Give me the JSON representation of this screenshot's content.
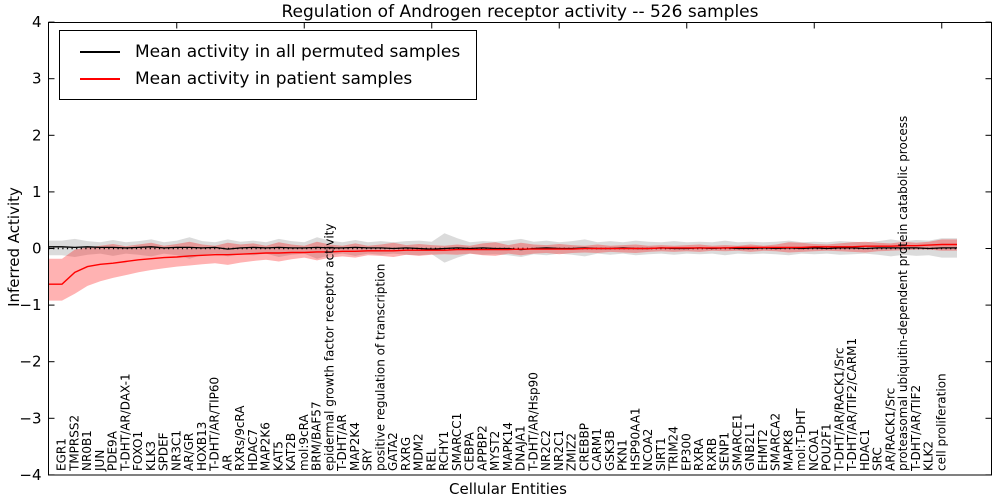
{
  "figure": {
    "title": "Regulation of Androgen receptor activity -- 526 samples",
    "xlabel": "Cellular Entities",
    "ylabel": "Inferred Activity"
  },
  "legend": {
    "entries": [
      {
        "label": "Mean activity in all permuted samples",
        "color": "#000000"
      },
      {
        "label": "Mean activity in patient samples",
        "color": "#ff0000"
      }
    ]
  },
  "chart_data": {
    "type": "line",
    "title": "Regulation of Androgen receptor activity -- 526 samples",
    "xlabel": "Cellular Entities",
    "ylabel": "Inferred Activity",
    "ylim": [
      -4,
      4
    ],
    "yticks": [
      4,
      3,
      2,
      1,
      0,
      -1,
      -2,
      -3,
      -4
    ],
    "grid": false,
    "legend_position": "upper left",
    "baseline": 0,
    "categories": [
      "EGR1",
      "TMPRSS2",
      "NR0B1",
      "JUN",
      "PDE9A",
      "T-DHT/AR/DAX-1",
      "FOXO1",
      "KLK3",
      "SPDEF",
      "NR3C1",
      "AR/GR",
      "HOXB13",
      "T-DHT/AR/TIP60",
      "AR",
      "RXRs/9cRA",
      "HDAC7",
      "MAP2K6",
      "KAT5",
      "KAT2B",
      "mol:9cRA",
      "BRM/BAF57",
      "epidermal growth factor receptor activity",
      "T-DHT/AR",
      "MAP2K4",
      "SRY",
      "positive regulation of transcription",
      "GATA2",
      "RXRG",
      "MDM2",
      "REL",
      "RCHY1",
      "SMARCC1",
      "CEBPA",
      "APPBP2",
      "MYST2",
      "MAPK14",
      "DNAJA1",
      "T-DHT/AR/Hsp90",
      "NR2C2",
      "NR2C1",
      "ZMIZ2",
      "CREBBP",
      "CARM1",
      "GSK3B",
      "PKN1",
      "HSP90AA1",
      "NCOA2",
      "SIRT1",
      "TRIM24",
      "EP300",
      "RXRA",
      "RXRB",
      "SENP1",
      "SMARCE1",
      "GNB2L1",
      "EHMT2",
      "SMARCA2",
      "MAPK8",
      "mol:T-DHT",
      "NCOA1",
      "POU2F1",
      "T-DHT/AR/RACK1/Src",
      "T-DHT/AR/TIF2/CARM1",
      "HDAC1",
      "SRC",
      "AR/RACK1/Src",
      "proteasomal ubiquitin-dependent protein catabolic process",
      "T-DHT/AR/TIF2",
      "KLK2",
      "cell proliferation"
    ],
    "series": [
      {
        "name": "Mean activity in all permuted samples",
        "color": "#000000",
        "values": [
          0.03,
          0.02,
          0.03,
          0.02,
          0.02,
          0.01,
          0.02,
          0.03,
          0.01,
          0.02,
          0.02,
          0.01,
          0.02,
          -0.01,
          0.01,
          0.02,
          0.01,
          0.02,
          0.01,
          0.01,
          0.02,
          0.01,
          0.01,
          0.02,
          0.01,
          0.01,
          0.0,
          0.01,
          0.0,
          -0.01,
          0.0,
          0.01,
          0.0,
          0.01,
          0.0,
          0.0,
          -0.02,
          0.0,
          0.01,
          0.0,
          0.0,
          0.01,
          0.0,
          0.0,
          0.01,
          0.0,
          0.0,
          0.01,
          0.0,
          0.0,
          0.01,
          0.0,
          0.01,
          0.0,
          0.0,
          0.01,
          0.0,
          0.01,
          0.0,
          0.01,
          0.0,
          0.01,
          0.01,
          0.0,
          0.01,
          0.01,
          0.01,
          0.01,
          0.0,
          0.01
        ],
        "band": {
          "color": "rgba(110,110,110,0.25)",
          "upper": [
            0.14,
            0.17,
            0.13,
            0.11,
            0.15,
            0.11,
            0.13,
            0.16,
            0.11,
            0.14,
            0.2,
            0.13,
            0.11,
            0.16,
            0.12,
            0.14,
            0.11,
            0.17,
            0.13,
            0.11,
            0.2,
            0.14,
            0.11,
            0.15,
            0.11,
            0.13,
            0.11,
            0.13,
            0.14,
            0.12,
            0.27,
            0.18,
            0.11,
            0.13,
            0.12,
            0.14,
            0.17,
            0.12,
            0.14,
            0.11,
            0.13,
            0.16,
            0.11,
            0.13,
            0.11,
            0.14,
            0.12,
            0.11,
            0.13,
            0.11,
            0.12,
            0.11,
            0.14,
            0.11,
            0.12,
            0.11,
            0.12,
            0.14,
            0.11,
            0.12,
            0.11,
            0.13,
            0.12,
            0.11,
            0.13,
            0.16,
            0.13,
            0.15,
            0.14,
            0.18
          ],
          "lower": [
            -0.12,
            -0.15,
            -0.11,
            -0.09,
            -0.13,
            -0.09,
            -0.11,
            -0.14,
            -0.09,
            -0.12,
            -0.18,
            -0.11,
            -0.09,
            -0.14,
            -0.1,
            -0.12,
            -0.09,
            -0.15,
            -0.11,
            -0.09,
            -0.18,
            -0.12,
            -0.09,
            -0.13,
            -0.09,
            -0.11,
            -0.09,
            -0.11,
            -0.12,
            -0.1,
            -0.25,
            -0.16,
            -0.09,
            -0.11,
            -0.1,
            -0.12,
            -0.15,
            -0.1,
            -0.12,
            -0.09,
            -0.11,
            -0.14,
            -0.09,
            -0.11,
            -0.09,
            -0.12,
            -0.1,
            -0.09,
            -0.11,
            -0.09,
            -0.1,
            -0.09,
            -0.12,
            -0.09,
            -0.1,
            -0.09,
            -0.1,
            -0.12,
            -0.09,
            -0.1,
            -0.09,
            -0.11,
            -0.1,
            -0.09,
            -0.11,
            -0.14,
            -0.11,
            -0.13,
            -0.12,
            -0.16
          ]
        }
      },
      {
        "name": "Mean activity in patient samples",
        "color": "#ff0000",
        "values": [
          -0.63,
          -0.42,
          -0.32,
          -0.28,
          -0.26,
          -0.23,
          -0.2,
          -0.18,
          -0.16,
          -0.15,
          -0.13,
          -0.12,
          -0.11,
          -0.11,
          -0.1,
          -0.09,
          -0.08,
          -0.08,
          -0.07,
          -0.07,
          -0.06,
          -0.06,
          -0.05,
          -0.05,
          -0.04,
          -0.04,
          -0.04,
          -0.03,
          -0.03,
          -0.03,
          -0.03,
          -0.02,
          -0.02,
          -0.02,
          -0.02,
          -0.02,
          -0.01,
          -0.01,
          -0.01,
          -0.01,
          -0.01,
          0.0,
          0.0,
          0.0,
          0.0,
          0.0,
          0.0,
          0.01,
          0.01,
          0.01,
          0.01,
          0.01,
          0.01,
          0.02,
          0.02,
          0.02,
          0.02,
          0.02,
          0.02,
          0.03,
          0.03,
          0.03,
          0.03,
          0.04,
          0.04,
          0.04,
          0.05,
          0.05,
          0.06,
          0.07
        ],
        "band": {
          "color": "rgba(255,0,0,0.30)",
          "upper": [
            -0.18,
            -0.02,
            0.02,
            0.05,
            0.08,
            0.04,
            0.07,
            0.1,
            0.05,
            0.08,
            0.12,
            0.07,
            0.05,
            0.1,
            0.07,
            0.09,
            0.05,
            0.11,
            0.07,
            0.05,
            0.12,
            0.07,
            0.05,
            0.09,
            0.05,
            0.07,
            0.1,
            0.06,
            0.08,
            0.06,
            0.05,
            0.07,
            0.05,
            0.09,
            0.11,
            0.06,
            0.1,
            0.07,
            0.06,
            0.08,
            0.06,
            0.05,
            0.07,
            0.05,
            0.06,
            0.07,
            0.05,
            0.06,
            0.05,
            0.06,
            0.07,
            0.05,
            0.06,
            0.05,
            0.07,
            0.05,
            0.07,
            0.11,
            0.1,
            0.08,
            0.07,
            0.09,
            0.11,
            0.12,
            0.1,
            0.09,
            0.12,
            0.1,
            0.12,
            0.16
          ],
          "lower": [
            -0.92,
            -0.8,
            -0.66,
            -0.58,
            -0.52,
            -0.47,
            -0.42,
            -0.38,
            -0.35,
            -0.32,
            -0.3,
            -0.28,
            -0.26,
            -0.29,
            -0.25,
            -0.22,
            -0.2,
            -0.23,
            -0.19,
            -0.16,
            -0.21,
            -0.16,
            -0.14,
            -0.16,
            -0.12,
            -0.13,
            -0.15,
            -0.11,
            -0.13,
            -0.11,
            -0.1,
            -0.11,
            -0.09,
            -0.12,
            -0.13,
            -0.09,
            -0.12,
            -0.09,
            -0.08,
            -0.1,
            -0.08,
            -0.07,
            -0.08,
            -0.06,
            -0.07,
            -0.08,
            -0.06,
            -0.05,
            -0.06,
            -0.05,
            -0.06,
            -0.04,
            -0.05,
            -0.04,
            -0.06,
            -0.04,
            -0.05,
            -0.07,
            -0.06,
            -0.05,
            -0.04,
            -0.05,
            -0.06,
            -0.07,
            -0.05,
            -0.04,
            -0.03,
            -0.02,
            -0.02,
            -0.04
          ]
        }
      }
    ]
  }
}
